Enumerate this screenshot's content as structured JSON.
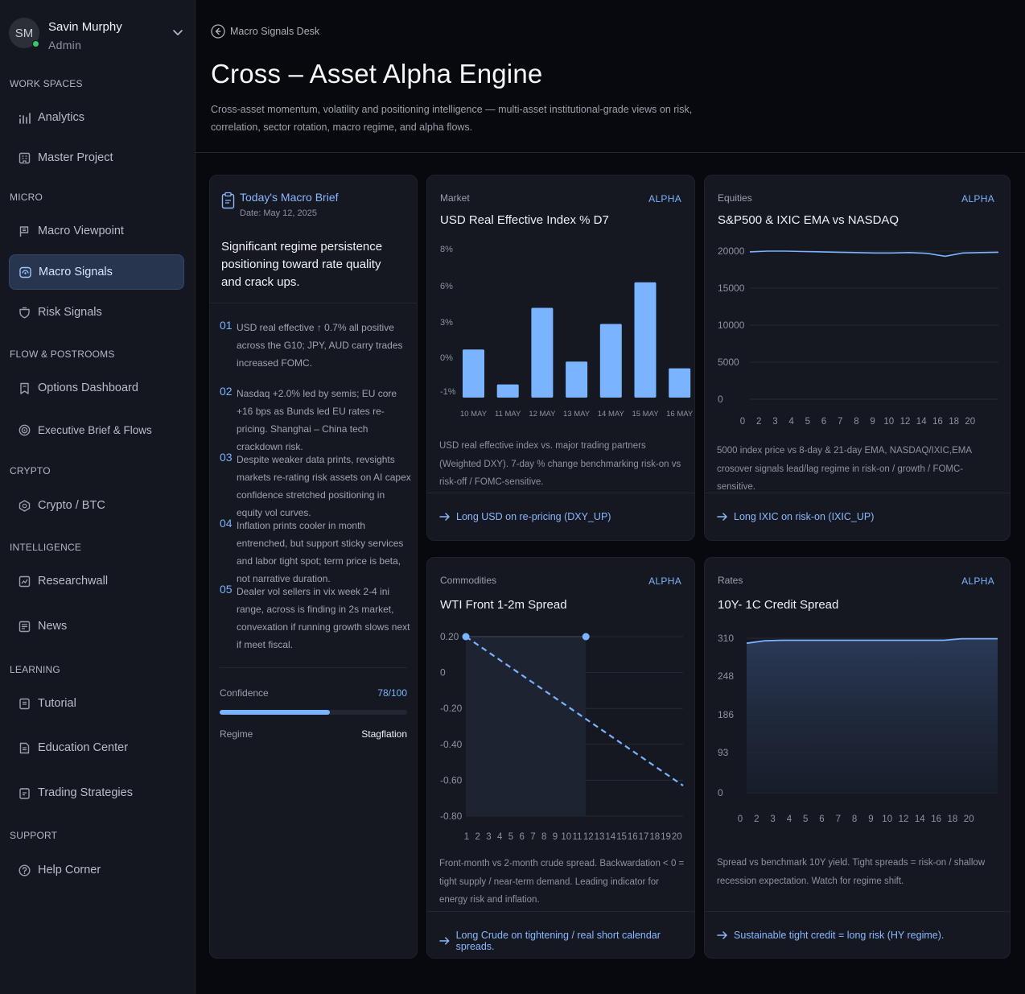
{
  "user": {
    "initials": "SM",
    "name": "Savin Murphy",
    "role": "Admin"
  },
  "sidebar": {
    "sections": [
      {
        "label": "WORK SPACES",
        "items": [
          {
            "label": "Analytics",
            "icon": "bar-chart-icon"
          },
          {
            "label": "Master Project",
            "icon": "building-icon"
          }
        ]
      },
      {
        "label": "MICRO",
        "items": [
          {
            "label": "Macro Viewpoint",
            "icon": "flag-icon"
          },
          {
            "label": "Macro Signals",
            "icon": "signal-icon",
            "active": true
          },
          {
            "label": "Risk Signals",
            "icon": "shield-icon"
          }
        ]
      },
      {
        "label": "FLOW & POSTROOMS",
        "items": [
          {
            "label": "Options Dashboard",
            "icon": "bookmark-icon"
          },
          {
            "label": "Executive Brief & Flows",
            "icon": "target-icon"
          }
        ]
      },
      {
        "label": "CRYPTO",
        "items": [
          {
            "label": "Crypto / BTC",
            "icon": "crypto-icon"
          }
        ]
      },
      {
        "label": "INTELLIGENCE",
        "items": [
          {
            "label": "Researchwall",
            "icon": "research-icon"
          },
          {
            "label": "News",
            "icon": "news-icon"
          }
        ]
      },
      {
        "label": "LEARNING",
        "items": [
          {
            "label": "Tutorial",
            "icon": "book-icon"
          },
          {
            "label": "Education Center",
            "icon": "document-icon"
          },
          {
            "label": "Trading Strategies",
            "icon": "strategy-icon"
          }
        ]
      },
      {
        "label": "SUPPORT",
        "items": [
          {
            "label": "Help Corner",
            "icon": "help-icon"
          }
        ]
      }
    ]
  },
  "header": {
    "breadcrumb": "Macro Signals Desk",
    "title": "Cross – Asset Alpha Engine",
    "subtitle": "Cross-asset momentum, volatility and positioning intelligence — multi-asset institutional-grade views on risk, correlation, sector rotation, macro regime, and alpha flows."
  },
  "brief": {
    "title": "Today's Macro Brief",
    "date": "Date: May 12, 2025",
    "summary": "Significant regime persistence positioning toward rate quality and crack ups.",
    "items": [
      {
        "num": "01",
        "text": "USD real effective ↑ 0.7% all positive across the G10; JPY, AUD carry trades increased FOMC."
      },
      {
        "num": "02",
        "text": "Nasdaq +2.0% led by semis; EU core +16 bps as Bunds led EU rates re-pricing. Shanghai – China tech crackdown risk."
      },
      {
        "num": "03",
        "text": "Despite weaker data prints, revsights markets re-rating risk assets on AI capex confidence stretched positioning in equity vol curves."
      },
      {
        "num": "04",
        "text": "Inflation prints cooler in month entrenched, but support sticky services and labor tight spot; term price is beta, not narrative duration."
      },
      {
        "num": "05",
        "text": "Dealer vol sellers in vix week 2-4 ini range, across is finding in 2s market, convexation if running growth slows next if meet fiscal."
      }
    ],
    "confidence_label": "Confidence",
    "confidence_value": "78/100",
    "confidence_fraction": 0.59,
    "regime_label": "Regime",
    "regime_value": "Stagflation"
  },
  "cards": {
    "usd": {
      "label": "Market",
      "badge": "ALPHA",
      "title": "USD Real Effective Index % D7",
      "desc": "USD real effective index vs. major trading partners (Weighted DXY). 7-day % change benchmarking risk-on vs risk-off / FOMC-sensitive.",
      "action": "Long USD on re-pricing (DXY_UP)"
    },
    "eq": {
      "label": "Equities",
      "badge": "ALPHA",
      "title": "S&P500 & IXIC EMA vs NASDAQ",
      "desc": "5000 index price vs 8-day & 21-day EMA, NASDAQ/IXIC,EMA crosover signals lead/lag regime in risk-on / growth / FOMC-sensitive.",
      "action": "Long IXIC on risk-on (IXIC_UP)"
    },
    "wti": {
      "label": "Commodities",
      "badge": "ALPHA",
      "title": "WTI Front 1-2m Spread",
      "desc": "Front-month vs 2-month crude spread. Backwardation < 0 = tight supply / near-term demand. Leading indicator for energy risk and inflation.",
      "action": "Long Crude on tightening / real short calendar spreads."
    },
    "rates": {
      "label": "Rates",
      "badge": "ALPHA",
      "title": "10Y- 1C Credit Spread",
      "desc": "Spread vs benchmark 10Y yield. Tight spreads = risk-on / shallow recession expectation. Watch for regime shift.",
      "action": "Sustainable tight credit = long risk (HY regime)."
    }
  },
  "chart_data": [
    {
      "type": "bar",
      "title": "USD Real Effective Index % D7",
      "categories": [
        "10 MAY",
        "11 MAY",
        "12 MAY",
        "13 MAY",
        "14 MAY",
        "15 MAY",
        "16 MAY"
      ],
      "y_ticks": [
        "8%",
        "6%",
        "3%",
        "0%",
        "-1%"
      ],
      "values": [
        2.2,
        -0.4,
        5.3,
        1.3,
        4.1,
        7.2,
        0.8
      ],
      "color": "#7ab3ff"
    },
    {
      "type": "line",
      "title": "S&P500 & IXIC EMA vs NASDAQ",
      "x_ticks": [
        "0",
        "2",
        "3",
        "4",
        "5",
        "6",
        "7",
        "8",
        "9",
        "10",
        "12",
        "14",
        "16",
        "18",
        "20"
      ],
      "y_ticks": [
        "20000",
        "15000",
        "10000",
        "5000",
        "0"
      ],
      "ylim": [
        0,
        20000
      ],
      "y": [
        19900,
        20000,
        20000,
        19950,
        19900,
        19850,
        19800,
        19750,
        19750,
        19800,
        19700,
        19300,
        19750,
        19800,
        19850
      ],
      "color": "#7ab3ff"
    },
    {
      "type": "line",
      "title": "WTI Front 1-2m Spread",
      "x_ticks": [
        "1",
        "2",
        "3",
        "4",
        "5",
        "6",
        "7",
        "8",
        "9",
        "10",
        "11",
        "12",
        "13",
        "14",
        "15",
        "16",
        "17",
        "18",
        "19",
        "20"
      ],
      "y_ticks": [
        "0.20",
        "0",
        "-0.20",
        "-0.40",
        "-0.60",
        "-0.80"
      ],
      "ylim": [
        -0.8,
        0.2
      ],
      "points": [
        {
          "x": 1,
          "y": 0.2
        },
        {
          "x": 11.5,
          "y": 0.2
        }
      ],
      "trend": [
        {
          "x": 1,
          "y": 0.2
        },
        {
          "x": 20,
          "y": -0.63
        }
      ],
      "color": "#7ab3ff"
    },
    {
      "type": "area",
      "title": "10Y- 1C Credit Spread",
      "x_ticks": [
        "0",
        "2",
        "3",
        "4",
        "5",
        "6",
        "7",
        "8",
        "9",
        "10",
        "12",
        "14",
        "16",
        "18",
        "20"
      ],
      "y_ticks": [
        "310",
        "248",
        "186",
        "93",
        "0"
      ],
      "ylim": [
        0,
        310
      ],
      "y": [
        300,
        305,
        306,
        306,
        306,
        306,
        306,
        306,
        306,
        306,
        306,
        306,
        309,
        309,
        309
      ],
      "color": "#7ab3ff"
    }
  ]
}
